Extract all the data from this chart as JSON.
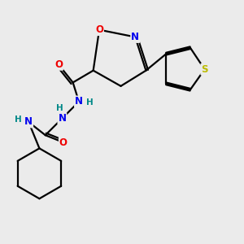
{
  "bg_color": "#ebebeb",
  "atom_colors": {
    "C": "#000000",
    "N": "#0000ee",
    "O": "#ee0000",
    "S": "#bbbb00",
    "H": "#008888"
  },
  "bond_color": "#000000",
  "bond_width": 1.6,
  "fig_width": 3.0,
  "fig_height": 3.0,
  "dpi": 100,
  "xlim": [
    0,
    10
  ],
  "ylim": [
    0,
    10
  ]
}
